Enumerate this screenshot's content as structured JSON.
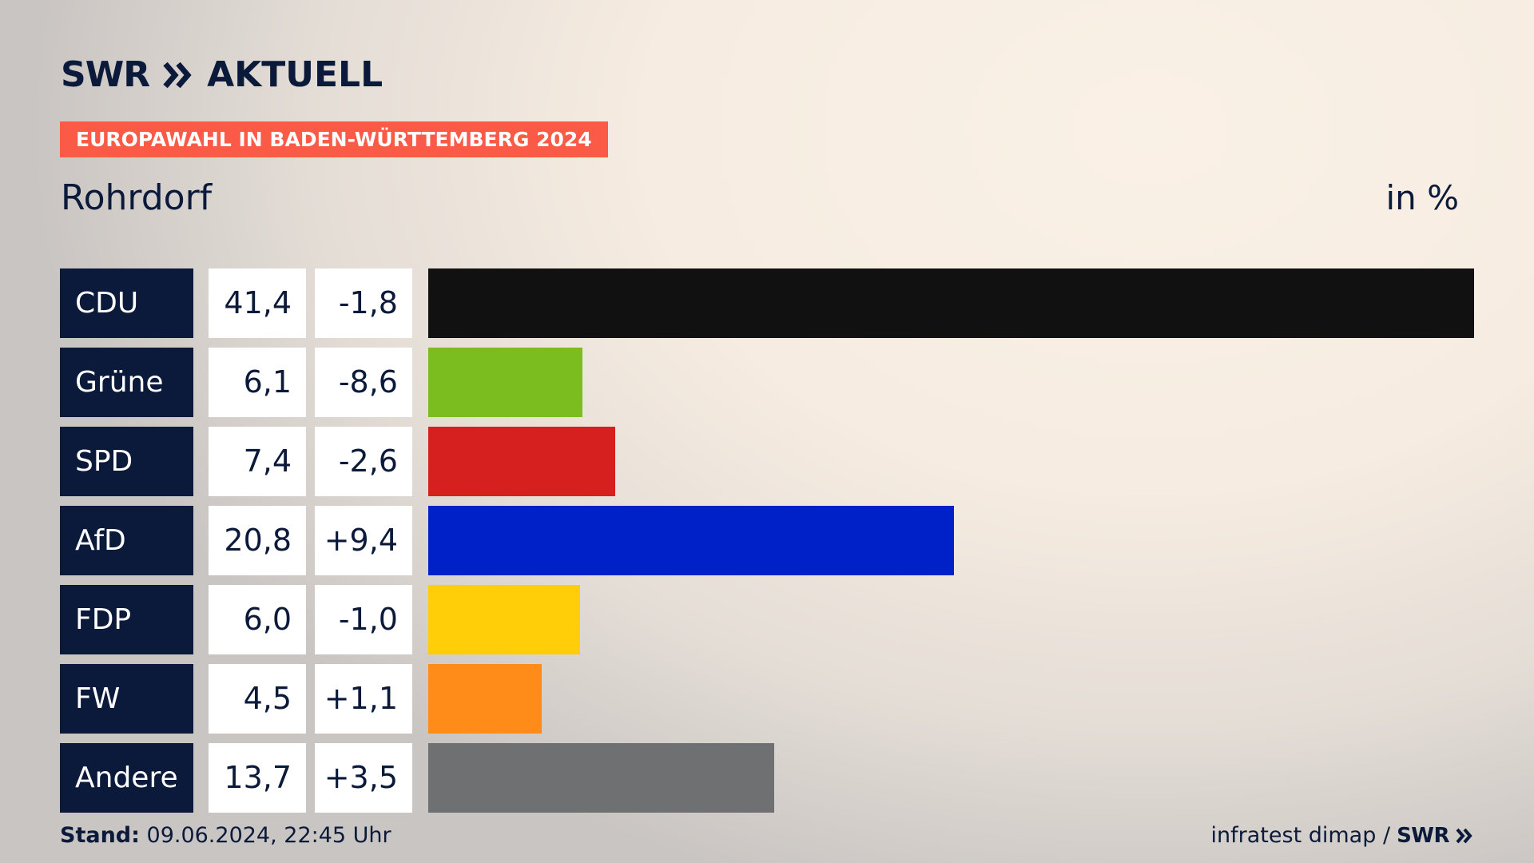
{
  "header": {
    "brand": "SWR",
    "product": "AKTUELL",
    "badge": "EUROPAWAHL IN BADEN-WÜRTTEMBERG 2024",
    "place": "Rohrdorf",
    "unit": "in %"
  },
  "footer": {
    "stand_label": "Stand:",
    "stand_value": "09.06.2024, 22:45 Uhr",
    "source": "infratest dimap /",
    "source_brand": "SWR"
  },
  "colors": {
    "navy": "#0b1a3a",
    "badge": "#fa5a46"
  },
  "chart_data": {
    "type": "bar",
    "orientation": "horizontal",
    "categories": [
      "CDU",
      "Grüne",
      "SPD",
      "AfD",
      "FDP",
      "FW",
      "Andere"
    ],
    "series": [
      {
        "values": [
          41.4,
          6.1,
          7.4,
          20.8,
          6.0,
          4.5,
          13.7
        ]
      }
    ],
    "value_labels": [
      "41,4",
      "6,1",
      "7,4",
      "20,8",
      "6,0",
      "4,5",
      "13,7"
    ],
    "change_labels": [
      "-1,8",
      "-8,6",
      "-2,6",
      "+9,4",
      "-1,0",
      "+1,1",
      "+3,5"
    ],
    "changes": [
      -1.8,
      -8.6,
      -2.6,
      9.4,
      -1.0,
      1.1,
      3.5
    ],
    "bar_colors": [
      "#111111",
      "#7bbd1e",
      "#d61f1f",
      "#0021c8",
      "#ffce08",
      "#ff8c19",
      "#6f7072"
    ],
    "xlim": [
      0,
      41.4
    ],
    "grid": false,
    "legend": "none"
  }
}
